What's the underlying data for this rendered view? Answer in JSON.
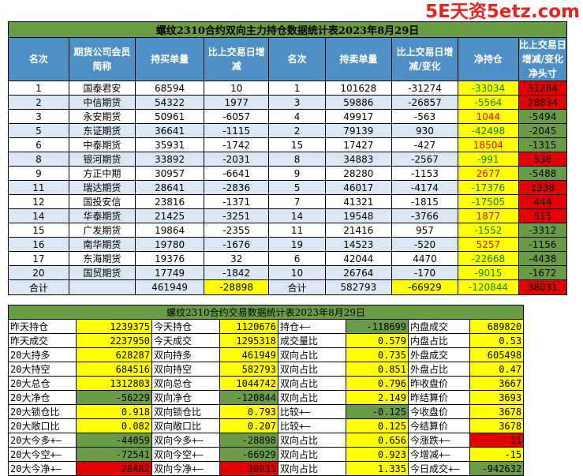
{
  "watermark": "5E天资5etz.com",
  "table1": {
    "title": "螺纹2310合约双向主力持仓数据统计表2023年8月29日",
    "headers": [
      "名次",
      "期货公司会员简称",
      "持买单量",
      "比上交易日增减",
      "名次",
      "持卖单量",
      "比上交易日增减/变化",
      "净持仓",
      "比上交易日增减/变化净头寸"
    ],
    "rows": [
      [
        "1",
        "国泰君安",
        "68594",
        "10",
        "1",
        "101628",
        "-31274",
        "-33034",
        "31284"
      ],
      [
        "2",
        "中信期货",
        "54322",
        "1977",
        "3",
        "59886",
        "-26857",
        "-5564",
        "28834"
      ],
      [
        "3",
        "永安期货",
        "50961",
        "-6057",
        "4",
        "49917",
        "-563",
        "1044",
        "-5494"
      ],
      [
        "5",
        "东证期货",
        "36641",
        "-1115",
        "2",
        "79139",
        "930",
        "-42498",
        "-2045"
      ],
      [
        "6",
        "中泰期货",
        "35931",
        "-1742",
        "15",
        "17427",
        "-427",
        "18504",
        "-1315"
      ],
      [
        "8",
        "银河期货",
        "33892",
        "-2031",
        "8",
        "34883",
        "-2567",
        "-991",
        "536"
      ],
      [
        "9",
        "方正中期",
        "30957",
        "-6641",
        "9",
        "28280",
        "-1153",
        "2677",
        "-5488"
      ],
      [
        "11",
        "瑞达期货",
        "28641",
        "-2836",
        "5",
        "46017",
        "-4174",
        "-17376",
        "1338"
      ],
      [
        "12",
        "国投安信",
        "23816",
        "-1371",
        "7",
        "41321",
        "-1815",
        "-17505",
        "444"
      ],
      [
        "14",
        "华泰期货",
        "21425",
        "-3251",
        "14",
        "19548",
        "-3766",
        "1877",
        "515"
      ],
      [
        "15",
        "广发期货",
        "19864",
        "-2355",
        "11",
        "21416",
        "957",
        "-1552",
        "-3312"
      ],
      [
        "16",
        "南华期货",
        "19780",
        "-1676",
        "19",
        "14523",
        "-520",
        "5257",
        "-1156"
      ],
      [
        "17",
        "东海期货",
        "19376",
        "32",
        "6",
        "42044",
        "4470",
        "-22668",
        "-4438"
      ],
      [
        "20",
        "国贸期货",
        "17749",
        "-1842",
        "10",
        "26764",
        "-170",
        "-9015",
        "-1672"
      ]
    ],
    "total": [
      "合计",
      "",
      "461949",
      "-28898",
      "合计",
      "582793",
      "-66929",
      "-120844",
      "38031"
    ]
  },
  "table2": {
    "title": "螺纹2310合约交易数据统计表2023年8月29日",
    "rows": [
      [
        "昨天持仓",
        "1239375",
        "今天持仓",
        "1120676",
        "持仓+—",
        "-118699",
        "内盘成交",
        "689820"
      ],
      [
        "昨天成交",
        "2237950",
        "今天成交",
        "1295318",
        "成交量比",
        "0.579",
        "内盘占比",
        "0.53"
      ],
      [
        "20大持多",
        "628287",
        "双向持多",
        "461949",
        "双向占比",
        "0.735",
        "外盘成交",
        "605498"
      ],
      [
        "20大持空",
        "684516",
        "双向持空",
        "582793",
        "双向占比",
        "0.851",
        "外盘占比",
        "0.47"
      ],
      [
        "20大总仓",
        "1312803",
        "双向总仓",
        "1044742",
        "双向占比",
        "0.796",
        "昨收盘价",
        "3667"
      ],
      [
        "20大净仓",
        "-56229",
        "双向净仓",
        "-120844",
        "双向占比",
        "2.149",
        "昨结算价",
        "3693"
      ],
      [
        "20大锁仓比",
        "0.918",
        "双向锁仓比",
        "0.793",
        "比较+—",
        "-0.125",
        "今收盘价",
        "3678"
      ],
      [
        "20大敞口比",
        "0.082",
        "双向敞口比",
        "0.207",
        "比较+—",
        "0.125",
        "今结算价",
        "3678"
      ],
      [
        "20大今多+—",
        "-44059",
        "双向今多+—",
        "-28898",
        "双向占比",
        "0.656",
        "今涨跌+—",
        "11"
      ],
      [
        "20大今空+—",
        "-72541",
        "双向今空+—",
        "-66929",
        "双向占比",
        "0.923",
        "今增减+—",
        "-15"
      ],
      [
        "20大今净+—",
        "28482",
        "双向今净+—",
        "38031",
        "双向占比",
        "1.335",
        "今日成交+—",
        "-942632"
      ]
    ]
  },
  "colors": {
    "title_green": "#6a9b45",
    "header_blue": "#4e8fc6",
    "row_blue": "#dbe7f3",
    "yellow": "#ffff00",
    "red": "#e30000",
    "green_text": "#008a00",
    "red_text": "#ff0000"
  }
}
